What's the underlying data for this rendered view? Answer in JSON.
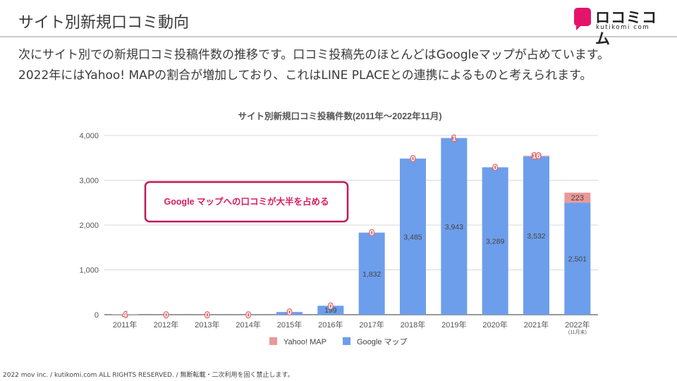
{
  "page": {
    "title": "サイト別新規口コミ動向",
    "description_lines": [
      "次にサイト別での新規口コミ投稿件数の推移です。口コミ投稿先のほとんどはGoogleマップが占めています。",
      "2022年にはYahoo! MAPの割合が増加しており、これはLINE PLACEとの連携によるものと考えられます。"
    ],
    "footer": "2022 mov inc. / kutikomi.com ALL RIGHTS RESERVED. / 無断転載・二次利用を固く禁止します。"
  },
  "logo": {
    "name": "ロコミコム",
    "sub": "kutikomi com"
  },
  "chart_data": {
    "type": "bar",
    "stacked": true,
    "title": "サイト別新規口コミ投稿件数(2011年～2022年11月)",
    "categories": [
      "2011年",
      "2012年",
      "2013年",
      "2014年",
      "2015年",
      "2016年",
      "2017年",
      "2018年",
      "2019年",
      "2020年",
      "2021年",
      "2022年"
    ],
    "category_notes": {
      "2022年": "(11月末)"
    },
    "series": [
      {
        "name": "Google マップ",
        "color": "#6d9eeb",
        "values": [
          4,
          0,
          0,
          0,
          60,
          199,
          1832,
          3485,
          3943,
          3289,
          3532,
          2501
        ],
        "labels": [
          "",
          "",
          "",
          "",
          "",
          "199",
          "1,832",
          "3,485",
          "3,943",
          "3,289",
          "3,532",
          "2,501"
        ]
      },
      {
        "name": "Yahoo! MAP",
        "color": "#ea9999",
        "values": [
          4,
          0,
          0,
          0,
          0,
          0,
          0,
          0,
          1,
          0,
          16,
          223
        ],
        "labels": [
          "4",
          "0",
          "0",
          "0",
          "0",
          "0",
          "0",
          "0",
          "1",
          "0",
          "16",
          "223"
        ]
      }
    ],
    "legend_order": [
      "Yahoo! MAP",
      "Google マップ"
    ],
    "legend_position": "bottom",
    "ylim": [
      0,
      4000
    ],
    "yticks": [
      0,
      1000,
      2000,
      3000,
      4000
    ],
    "ytick_labels": [
      "0",
      "1,000",
      "2,000",
      "3,000",
      "4,000"
    ],
    "grid": true,
    "annotation": {
      "text": "Google マップへの口コミが大半を占める",
      "border_color": "#c2185b",
      "text_color": "#d81b60"
    }
  }
}
